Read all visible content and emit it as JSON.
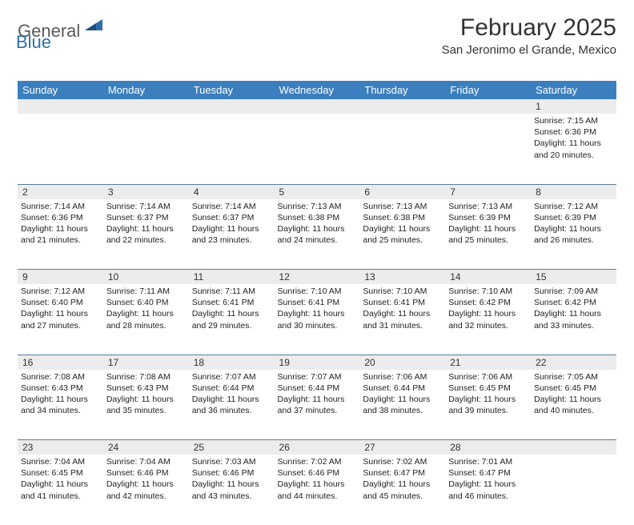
{
  "logo": {
    "general": "General",
    "blue": "Blue"
  },
  "title": "February 2025",
  "location": "San Jeronimo el Grande, Mexico",
  "colors": {
    "header_bg": "#3b7fbf",
    "header_text": "#ffffff",
    "daynum_bg": "#ececec",
    "rule": "#5a7a9a",
    "logo_gray": "#5a5a5a",
    "logo_blue": "#2f6fa8"
  },
  "day_names": [
    "Sunday",
    "Monday",
    "Tuesday",
    "Wednesday",
    "Thursday",
    "Friday",
    "Saturday"
  ],
  "weeks": [
    {
      "nums": [
        "",
        "",
        "",
        "",
        "",
        "",
        "1"
      ],
      "details": [
        "",
        "",
        "",
        "",
        "",
        "",
        "Sunrise: 7:15 AM\nSunset: 6:36 PM\nDaylight: 11 hours and 20 minutes."
      ]
    },
    {
      "nums": [
        "2",
        "3",
        "4",
        "5",
        "6",
        "7",
        "8"
      ],
      "details": [
        "Sunrise: 7:14 AM\nSunset: 6:36 PM\nDaylight: 11 hours and 21 minutes.",
        "Sunrise: 7:14 AM\nSunset: 6:37 PM\nDaylight: 11 hours and 22 minutes.",
        "Sunrise: 7:14 AM\nSunset: 6:37 PM\nDaylight: 11 hours and 23 minutes.",
        "Sunrise: 7:13 AM\nSunset: 6:38 PM\nDaylight: 11 hours and 24 minutes.",
        "Sunrise: 7:13 AM\nSunset: 6:38 PM\nDaylight: 11 hours and 25 minutes.",
        "Sunrise: 7:13 AM\nSunset: 6:39 PM\nDaylight: 11 hours and 25 minutes.",
        "Sunrise: 7:12 AM\nSunset: 6:39 PM\nDaylight: 11 hours and 26 minutes."
      ]
    },
    {
      "nums": [
        "9",
        "10",
        "11",
        "12",
        "13",
        "14",
        "15"
      ],
      "details": [
        "Sunrise: 7:12 AM\nSunset: 6:40 PM\nDaylight: 11 hours and 27 minutes.",
        "Sunrise: 7:11 AM\nSunset: 6:40 PM\nDaylight: 11 hours and 28 minutes.",
        "Sunrise: 7:11 AM\nSunset: 6:41 PM\nDaylight: 11 hours and 29 minutes.",
        "Sunrise: 7:10 AM\nSunset: 6:41 PM\nDaylight: 11 hours and 30 minutes.",
        "Sunrise: 7:10 AM\nSunset: 6:41 PM\nDaylight: 11 hours and 31 minutes.",
        "Sunrise: 7:10 AM\nSunset: 6:42 PM\nDaylight: 11 hours and 32 minutes.",
        "Sunrise: 7:09 AM\nSunset: 6:42 PM\nDaylight: 11 hours and 33 minutes."
      ]
    },
    {
      "nums": [
        "16",
        "17",
        "18",
        "19",
        "20",
        "21",
        "22"
      ],
      "details": [
        "Sunrise: 7:08 AM\nSunset: 6:43 PM\nDaylight: 11 hours and 34 minutes.",
        "Sunrise: 7:08 AM\nSunset: 6:43 PM\nDaylight: 11 hours and 35 minutes.",
        "Sunrise: 7:07 AM\nSunset: 6:44 PM\nDaylight: 11 hours and 36 minutes.",
        "Sunrise: 7:07 AM\nSunset: 6:44 PM\nDaylight: 11 hours and 37 minutes.",
        "Sunrise: 7:06 AM\nSunset: 6:44 PM\nDaylight: 11 hours and 38 minutes.",
        "Sunrise: 7:06 AM\nSunset: 6:45 PM\nDaylight: 11 hours and 39 minutes.",
        "Sunrise: 7:05 AM\nSunset: 6:45 PM\nDaylight: 11 hours and 40 minutes."
      ]
    },
    {
      "nums": [
        "23",
        "24",
        "25",
        "26",
        "27",
        "28",
        ""
      ],
      "details": [
        "Sunrise: 7:04 AM\nSunset: 6:45 PM\nDaylight: 11 hours and 41 minutes.",
        "Sunrise: 7:04 AM\nSunset: 6:46 PM\nDaylight: 11 hours and 42 minutes.",
        "Sunrise: 7:03 AM\nSunset: 6:46 PM\nDaylight: 11 hours and 43 minutes.",
        "Sunrise: 7:02 AM\nSunset: 6:46 PM\nDaylight: 11 hours and 44 minutes.",
        "Sunrise: 7:02 AM\nSunset: 6:47 PM\nDaylight: 11 hours and 45 minutes.",
        "Sunrise: 7:01 AM\nSunset: 6:47 PM\nDaylight: 11 hours and 46 minutes.",
        ""
      ]
    }
  ]
}
